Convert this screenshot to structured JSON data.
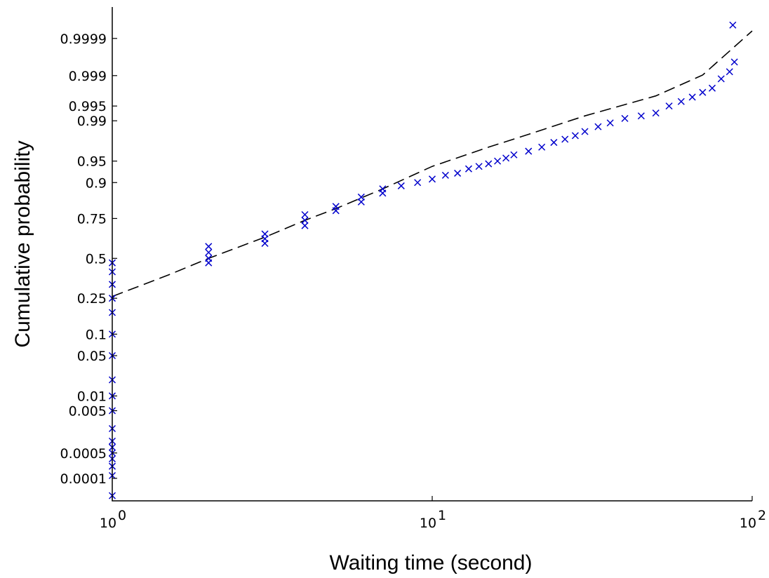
{
  "chart_data": {
    "type": "scatter",
    "title": "",
    "xlabel": "Waiting time (second)",
    "ylabel": "Cumulative probability",
    "x_scale": "log10",
    "y_scale": "probability",
    "xlim": [
      1,
      100
    ],
    "x_ticks": [
      {
        "value": 1,
        "base": "10",
        "exp": "0"
      },
      {
        "value": 10,
        "base": "10",
        "exp": "1"
      },
      {
        "value": 100,
        "base": "10",
        "exp": "2"
      }
    ],
    "y_ticks": [
      {
        "value": 0.0001,
        "label": "0.0001"
      },
      {
        "value": 0.0005,
        "label": "0.0005"
      },
      {
        "value": 0.005,
        "label": "0.005"
      },
      {
        "value": 0.01,
        "label": "0.01"
      },
      {
        "value": 0.05,
        "label": "0.05"
      },
      {
        "value": 0.1,
        "label": "0.1"
      },
      {
        "value": 0.25,
        "label": "0.25"
      },
      {
        "value": 0.5,
        "label": "0.5"
      },
      {
        "value": 0.75,
        "label": "0.75"
      },
      {
        "value": 0.9,
        "label": "0.9"
      },
      {
        "value": 0.95,
        "label": "0.95"
      },
      {
        "value": 0.99,
        "label": "0.99"
      },
      {
        "value": 0.995,
        "label": "0.995"
      },
      {
        "value": 0.999,
        "label": "0.999"
      },
      {
        "value": 0.9999,
        "label": "0.9999"
      }
    ],
    "grid": false,
    "legend": "none",
    "series": [
      {
        "marker": "x",
        "color": "#0000cc",
        "points": [
          {
            "x": 1,
            "y": 3e-05
          },
          {
            "x": 1,
            "y": 0.00012
          },
          {
            "x": 1,
            "y": 0.00022
          },
          {
            "x": 1,
            "y": 0.00035
          },
          {
            "x": 1,
            "y": 0.0005
          },
          {
            "x": 1,
            "y": 0.0007
          },
          {
            "x": 1,
            "y": 0.001
          },
          {
            "x": 1,
            "y": 0.002
          },
          {
            "x": 1,
            "y": 0.005
          },
          {
            "x": 1,
            "y": 0.01
          },
          {
            "x": 1,
            "y": 0.02
          },
          {
            "x": 1,
            "y": 0.05
          },
          {
            "x": 1,
            "y": 0.1
          },
          {
            "x": 1,
            "y": 0.18
          },
          {
            "x": 1,
            "y": 0.25
          },
          {
            "x": 1,
            "y": 0.33
          },
          {
            "x": 1,
            "y": 0.41
          },
          {
            "x": 1,
            "y": 0.47
          },
          {
            "x": 2,
            "y": 0.47
          },
          {
            "x": 2,
            "y": 0.5
          },
          {
            "x": 2,
            "y": 0.54
          },
          {
            "x": 2,
            "y": 0.58
          },
          {
            "x": 3,
            "y": 0.6
          },
          {
            "x": 3,
            "y": 0.63
          },
          {
            "x": 3,
            "y": 0.66
          },
          {
            "x": 4,
            "y": 0.71
          },
          {
            "x": 4,
            "y": 0.74
          },
          {
            "x": 4,
            "y": 0.77
          },
          {
            "x": 5,
            "y": 0.79
          },
          {
            "x": 5,
            "y": 0.81
          },
          {
            "x": 6,
            "y": 0.83
          },
          {
            "x": 6,
            "y": 0.85
          },
          {
            "x": 7,
            "y": 0.865
          },
          {
            "x": 7,
            "y": 0.88
          },
          {
            "x": 8,
            "y": 0.89
          },
          {
            "x": 9,
            "y": 0.9
          },
          {
            "x": 10,
            "y": 0.91
          },
          {
            "x": 11,
            "y": 0.92
          },
          {
            "x": 12,
            "y": 0.925
          },
          {
            "x": 13,
            "y": 0.935
          },
          {
            "x": 14,
            "y": 0.94
          },
          {
            "x": 15,
            "y": 0.945
          },
          {
            "x": 16,
            "y": 0.95
          },
          {
            "x": 17,
            "y": 0.955
          },
          {
            "x": 18,
            "y": 0.96
          },
          {
            "x": 20,
            "y": 0.965
          },
          {
            "x": 22,
            "y": 0.97
          },
          {
            "x": 24,
            "y": 0.975
          },
          {
            "x": 26,
            "y": 0.978
          },
          {
            "x": 28,
            "y": 0.981
          },
          {
            "x": 30,
            "y": 0.984
          },
          {
            "x": 33,
            "y": 0.987
          },
          {
            "x": 36,
            "y": 0.989
          },
          {
            "x": 40,
            "y": 0.991
          },
          {
            "x": 45,
            "y": 0.992
          },
          {
            "x": 50,
            "y": 0.993
          },
          {
            "x": 55,
            "y": 0.995
          },
          {
            "x": 60,
            "y": 0.996
          },
          {
            "x": 65,
            "y": 0.9968
          },
          {
            "x": 70,
            "y": 0.9975
          },
          {
            "x": 75,
            "y": 0.998
          },
          {
            "x": 80,
            "y": 0.9988
          },
          {
            "x": 85,
            "y": 0.9992
          },
          {
            "x": 88,
            "y": 0.99955
          },
          {
            "x": 87,
            "y": 0.99996
          }
        ]
      }
    ],
    "fit_line": {
      "style": "dashed",
      "color": "#000000",
      "points": [
        {
          "x": 1,
          "y": 0.26
        },
        {
          "x": 1.5,
          "y": 0.39
        },
        {
          "x": 2,
          "y": 0.5
        },
        {
          "x": 3,
          "y": 0.64
        },
        {
          "x": 4,
          "y": 0.74
        },
        {
          "x": 5,
          "y": 0.8
        },
        {
          "x": 7,
          "y": 0.88
        },
        {
          "x": 10,
          "y": 0.94
        },
        {
          "x": 15,
          "y": 0.97
        },
        {
          "x": 20,
          "y": 0.982
        },
        {
          "x": 30,
          "y": 0.992
        },
        {
          "x": 50,
          "y": 0.997
        },
        {
          "x": 70,
          "y": 0.99903
        },
        {
          "x": 100,
          "y": 0.99994
        }
      ]
    }
  }
}
